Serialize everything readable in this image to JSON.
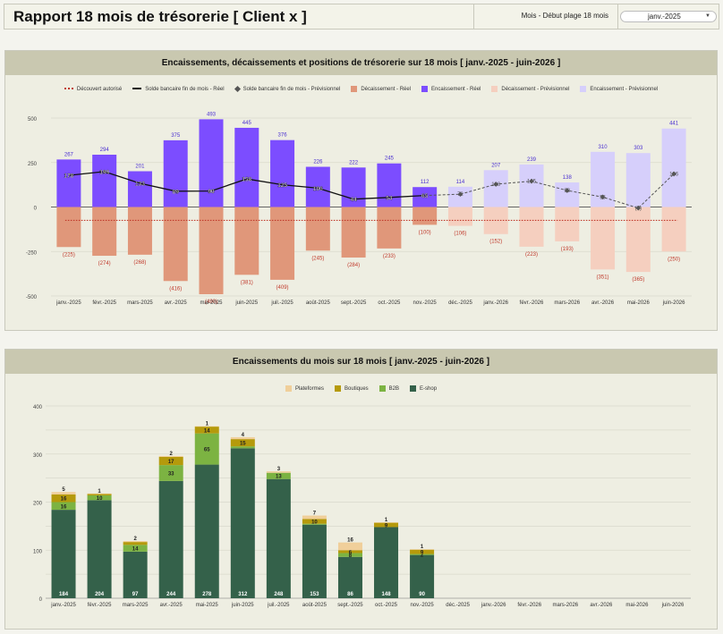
{
  "header": {
    "title": "Rapport 18 mois de trésorerie  [ Client x ]",
    "control_label": "Mois - Début plage 18 mois",
    "dropdown_value": "janv.-2025"
  },
  "colors": {
    "enc_reel": "#7c4dff",
    "enc_prev": "#d6cffb",
    "dec_reel": "#e0977a",
    "dec_prev": "#f5cfbf",
    "solde_reel": "#111111",
    "solde_prev": "#555555",
    "decouvert": "#c0392b",
    "plateformes": "#f0cf9a",
    "boutiques": "#b59a0c",
    "b2b": "#7cb342",
    "eshop": "#34614a"
  },
  "chart_data": [
    {
      "type": "bar",
      "title": "Encaissements, décaissements et positions de trésorerie sur 18 mois   [ janv.-2025 - juin-2026 ]",
      "categories": [
        "janv.-2025",
        "févr.-2025",
        "mars-2025",
        "avr.-2025",
        "mai-2025",
        "juin-2025",
        "juil.-2025",
        "août-2025",
        "sept.-2025",
        "oct.-2025",
        "nov.-2025",
        "déc.-2025",
        "janv.-2026",
        "févr.-2026",
        "mars-2026",
        "avr.-2026",
        "mai-2026",
        "juin-2026"
      ],
      "ylim": [
        -500,
        500
      ],
      "yticks": [
        500,
        250,
        0,
        -250,
        -500
      ],
      "legend": [
        "Découvert autorisé",
        "Solde bancaire fin de mois - Réel",
        "Solde bancaire fin de mois - Prévisionnel",
        "Décaissement - Réel",
        "Encaissement - Réel",
        "Décaissement - Prévisionnel",
        "Encaissement - Prévisionnel"
      ],
      "legend_position": "top",
      "encaissement": [
        267,
        294,
        201,
        375,
        493,
        445,
        376,
        226,
        222,
        245,
        112,
        114,
        207,
        239,
        138,
        310,
        303,
        441
      ],
      "decaissement": [
        -225,
        -274,
        -268,
        -416,
        -490,
        -381,
        -409,
        -245,
        -284,
        -233,
        -100,
        -106,
        -152,
        -223,
        -193,
        -351,
        -365,
        -250
      ],
      "realized_months": 11,
      "solde_reel": [
        178,
        199,
        133,
        89,
        90,
        158,
        125,
        106,
        44,
        54,
        65
      ],
      "solde_prev": [
        65,
        72,
        128,
        145,
        93,
        56,
        -6,
        186
      ],
      "solde_prev_start_index": 10,
      "decouvert_autorise": -75,
      "label_rules": {
        "enc_labels": [
          "267",
          "294",
          "201",
          "375",
          "493",
          "445",
          "376",
          "226",
          "222",
          "245",
          "112",
          "114",
          "207",
          "239",
          "138",
          "310",
          "303",
          "441"
        ],
        "dec_labels": [
          "(225)",
          "(274)",
          "(268)",
          "(416)",
          "(490)",
          "(381)",
          "(409)",
          "(245)",
          "(284)",
          "(233)",
          "(100)",
          "(106)",
          "(152)",
          "(223)",
          "(193)",
          "(351)",
          "(365)",
          "(250)"
        ],
        "solde_reel_labels": [
          "178",
          "199",
          "133",
          "89",
          "90",
          "158",
          "125",
          "106",
          "44",
          "54",
          "65"
        ],
        "solde_prev_labels": [
          "65",
          "72",
          "128",
          "145",
          "93",
          "56",
          "(6)",
          "186"
        ]
      }
    },
    {
      "type": "bar",
      "title": "Encaissements du mois sur 18 mois   [ janv.-2025 - juin-2026 ]",
      "categories": [
        "janv.-2025",
        "févr.-2025",
        "mars-2025",
        "avr.-2025",
        "mai-2025",
        "juin-2025",
        "juil.-2025",
        "août-2025",
        "sept.-2025",
        "oct.-2025",
        "nov.-2025",
        "déc.-2025",
        "janv.-2026",
        "févr.-2026",
        "mars-2026",
        "avr.-2026",
        "mai-2026",
        "juin-2026"
      ],
      "ylim": [
        0,
        400
      ],
      "yticks": [
        400,
        300,
        200,
        100,
        0
      ],
      "legend": [
        "Plateformes",
        "Boutiques",
        "B2B",
        "E-shop"
      ],
      "legend_position": "top",
      "stacked": true,
      "series": [
        {
          "name": "E-shop",
          "values": [
            184,
            204,
            97,
            244,
            278,
            312,
            248,
            153,
            86,
            148,
            90,
            0,
            0,
            0,
            0,
            0,
            0,
            0
          ]
        },
        {
          "name": "B2B",
          "values": [
            16,
            10,
            14,
            33,
            65,
            4,
            13,
            2,
            8,
            0,
            2,
            0,
            0,
            0,
            0,
            0,
            0,
            0
          ]
        },
        {
          "name": "Boutiques",
          "values": [
            16,
            3,
            6,
            17,
            14,
            15,
            0,
            10,
            6,
            9,
            9,
            0,
            0,
            0,
            0,
            0,
            0,
            0
          ]
        },
        {
          "name": "Plateformes",
          "values": [
            5,
            1,
            2,
            2,
            1,
            4,
            3,
            7,
            16,
            1,
            1,
            0,
            0,
            0,
            0,
            0,
            0,
            0
          ]
        }
      ],
      "labels": {
        "E-shop": [
          "184",
          "204",
          "97",
          "244",
          "278",
          "312",
          "248",
          "153",
          "86",
          "148",
          "90"
        ],
        "B2B": [
          "16",
          "10",
          "14",
          "33",
          "65",
          "",
          "13",
          "",
          "8",
          "",
          "2"
        ],
        "Boutiques": [
          "16",
          "",
          "",
          "17",
          "14",
          "15",
          "",
          "10",
          "6",
          "9",
          "9"
        ],
        "Plateformes": [
          "5",
          "1",
          "2",
          "2",
          "1",
          "4",
          "3",
          "7",
          "16",
          "1",
          "1"
        ]
      }
    }
  ]
}
